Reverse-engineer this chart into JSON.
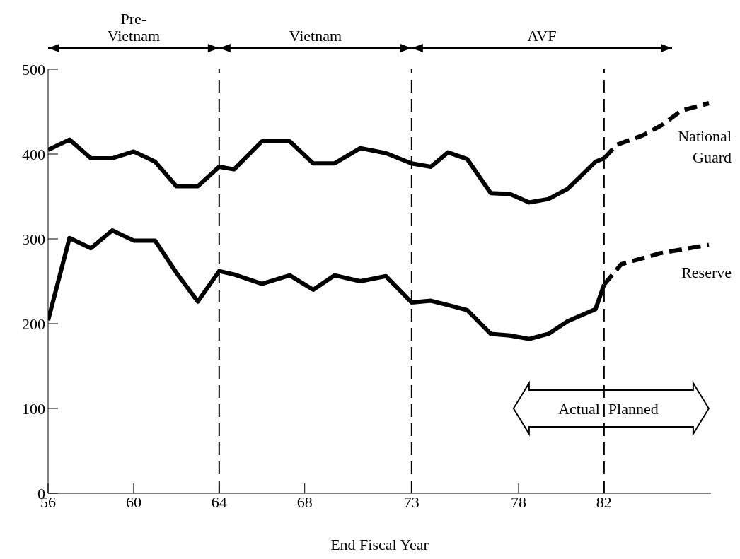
{
  "chart_data": {
    "type": "line",
    "xlabel": "End Fiscal Year",
    "xlim": [
      56,
      87
    ],
    "xticks": [
      56,
      60,
      64,
      68,
      73,
      78,
      82
    ],
    "ylim": [
      0,
      500
    ],
    "yticks": [
      0,
      100,
      200,
      300,
      400,
      500
    ],
    "marker": "none",
    "series": [
      {
        "name": "National Guard",
        "color": "#000000",
        "line_style": "solid",
        "x": [
          56,
          57,
          58,
          59,
          60,
          61,
          62,
          63,
          64,
          64.7,
          66,
          67.3,
          68.4,
          69.4,
          70.6,
          71.8,
          73,
          73.9,
          74.7,
          75.6,
          76.7,
          77.6,
          78.5,
          79.4,
          80.3,
          81.6,
          82
        ],
        "values": [
          405,
          417,
          395,
          395,
          403,
          391,
          362,
          362,
          385,
          382,
          415,
          415,
          389,
          389,
          407,
          401,
          389,
          385,
          402,
          394,
          354,
          353,
          343,
          347,
          359,
          391,
          395
        ]
      },
      {
        "color": "#000000",
        "line_style": "dashed",
        "x": [
          82,
          82.6,
          83.8,
          84.7,
          85.6,
          86.9
        ],
        "values": [
          395,
          411,
          422,
          434,
          451,
          460
        ]
      },
      {
        "name": "Reserve",
        "color": "#000000",
        "line_style": "solid",
        "x": [
          56,
          57,
          58,
          59,
          60,
          61,
          62,
          63,
          64,
          64.7,
          66,
          67.3,
          68.4,
          69.4,
          70.6,
          71.8,
          73,
          73.9,
          74.7,
          75.6,
          76.7,
          77.6,
          78.5,
          79.4,
          80.3,
          81.6,
          82
        ],
        "values": [
          204,
          301,
          289,
          310,
          298,
          298,
          260,
          226,
          262,
          258,
          247,
          257,
          240,
          257,
          250,
          256,
          225,
          227,
          222,
          216,
          188,
          186,
          182,
          188,
          203,
          217,
          246
        ]
      },
      {
        "color": "#000000",
        "line_style": "dashed",
        "x": [
          82,
          82.8,
          84.6,
          86.9
        ],
        "values": [
          246,
          270,
          283,
          293
        ]
      }
    ],
    "ref_lines": [
      {
        "axis": "x",
        "value": 64,
        "line_style": "dashed"
      },
      {
        "axis": "x",
        "value": 73,
        "line_style": "dashed"
      },
      {
        "axis": "x",
        "value": 82,
        "line_style": "dashed"
      }
    ],
    "annotations": [
      "Pre-Vietnam",
      "Vietnam",
      "AVF",
      "Actual",
      "Planned"
    ]
  }
}
